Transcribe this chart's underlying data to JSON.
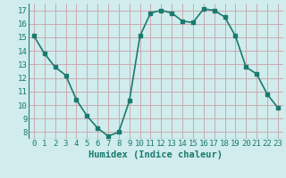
{
  "x": [
    0,
    1,
    2,
    3,
    4,
    5,
    6,
    7,
    8,
    9,
    10,
    11,
    12,
    13,
    14,
    15,
    16,
    17,
    18,
    19,
    20,
    21,
    22,
    23
  ],
  "y": [
    15.1,
    13.8,
    12.8,
    12.2,
    10.4,
    9.2,
    8.3,
    7.7,
    8.0,
    10.3,
    15.1,
    16.8,
    17.0,
    16.8,
    16.2,
    16.1,
    17.1,
    17.0,
    16.5,
    15.1,
    12.8,
    12.3,
    10.8,
    9.8
  ],
  "line_color": "#1a7a6e",
  "marker": "s",
  "markersize": 2.5,
  "bg_color": "#d0ecec",
  "grid_color": "#c8a0a8",
  "xlabel": "Humidex (Indice chaleur)",
  "ylim": [
    7.5,
    17.5
  ],
  "yticks": [
    8,
    9,
    10,
    11,
    12,
    13,
    14,
    15,
    16,
    17
  ],
  "xticks": [
    0,
    1,
    2,
    3,
    4,
    5,
    6,
    7,
    8,
    9,
    10,
    11,
    12,
    13,
    14,
    15,
    16,
    17,
    18,
    19,
    20,
    21,
    22,
    23
  ],
  "linewidth": 1.2,
  "xlabel_fontsize": 7.5,
  "tick_fontsize": 6.5
}
